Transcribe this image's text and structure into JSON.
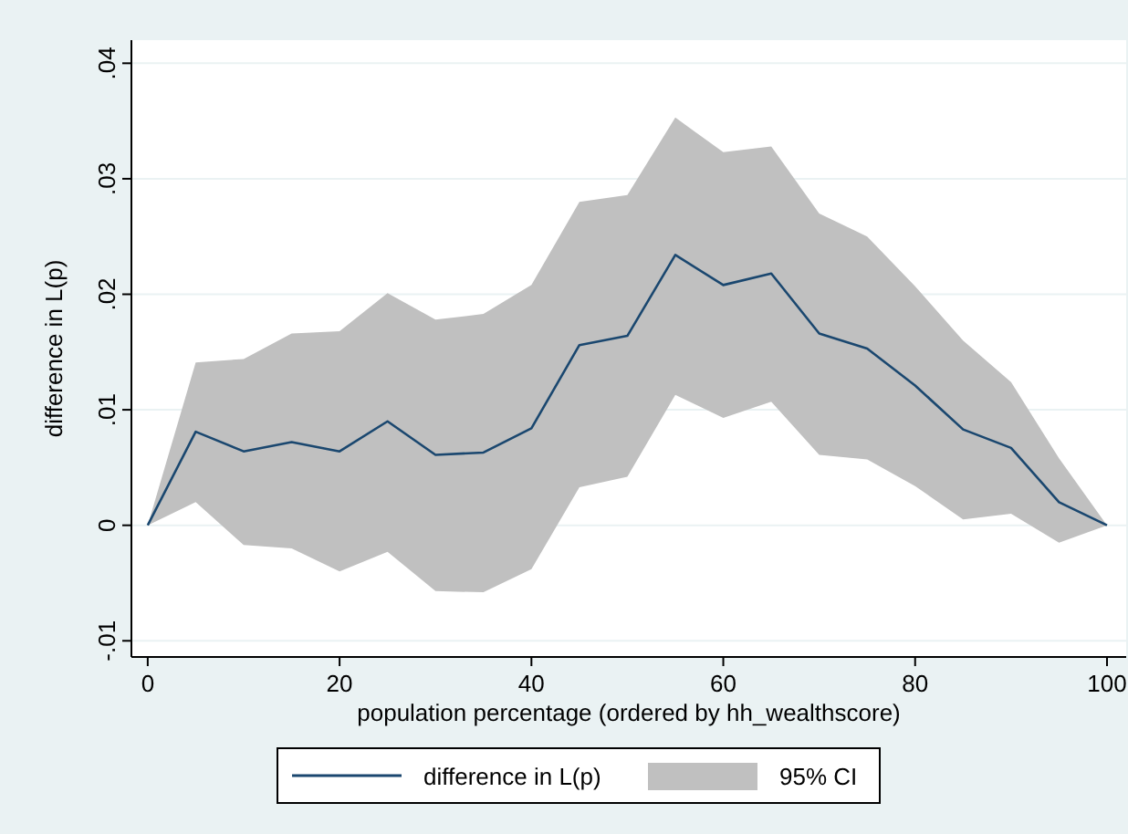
{
  "chart_data": {
    "type": "line",
    "xlabel": "population percentage (ordered by hh_wealthscore)",
    "ylabel": "difference in L(p)",
    "annotations": [
      "95% CI"
    ],
    "x": [
      0,
      5,
      10,
      15,
      20,
      25,
      30,
      35,
      40,
      45,
      50,
      55,
      60,
      65,
      70,
      75,
      80,
      85,
      90,
      95,
      100
    ],
    "series": [
      {
        "name": "difference in L(p)",
        "color": "#1a476f",
        "values": [
          0,
          0.0081,
          0.0064,
          0.0072,
          0.0064,
          0.009,
          0.0061,
          0.0063,
          0.0084,
          0.0156,
          0.0164,
          0.0234,
          0.0208,
          0.0218,
          0.0166,
          0.0153,
          0.0121,
          0.0083,
          0.0067,
          0.002,
          0
        ],
        "lower": [
          0,
          0.002,
          -0.0017,
          -0.002,
          -0.004,
          -0.0023,
          -0.0057,
          -0.0058,
          -0.0038,
          0.0033,
          0.0042,
          0.0113,
          0.0093,
          0.0107,
          0.0061,
          0.0057,
          0.0034,
          0.0005,
          0.001,
          -0.0015,
          0
        ],
        "upper": [
          0,
          0.0141,
          0.0144,
          0.0166,
          0.0168,
          0.0201,
          0.0178,
          0.0183,
          0.0208,
          0.028,
          0.0286,
          0.0353,
          0.0323,
          0.0328,
          0.027,
          0.025,
          0.0207,
          0.016,
          0.0124,
          0.0058,
          0
        ]
      }
    ],
    "xlim": [
      -1.7,
      102
    ],
    "xticks": [
      0,
      20,
      40,
      60,
      80,
      100
    ],
    "ylim": [
      -0.0114,
      0.042
    ],
    "yticks": [
      {
        "value": -0.01,
        "label": "-.01"
      },
      {
        "value": 0,
        "label": "0"
      },
      {
        "value": 0.01,
        "label": ".01"
      },
      {
        "value": 0.02,
        "label": ".02"
      },
      {
        "value": 0.03,
        "label": ".03"
      },
      {
        "value": 0.04,
        "label": ".04"
      }
    ],
    "grid": "y",
    "legend": "bottom",
    "line_style": "solid",
    "marker": "none"
  }
}
